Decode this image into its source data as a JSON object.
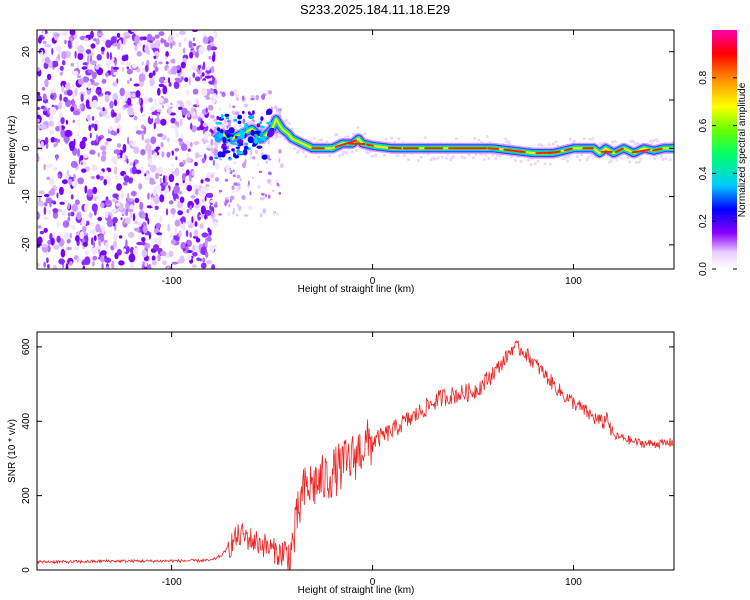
{
  "title": "S233.2025.184.11.18.E29",
  "chart_data": [
    {
      "type": "heatmap",
      "xlabel": "Height of straight line (km)",
      "ylabel": "Frequency (Hz)",
      "xlim": [
        -167,
        150
      ],
      "ylim": [
        -25,
        24.5
      ],
      "xticks": [
        -100,
        0,
        100
      ],
      "yticks": [
        -20,
        -10,
        0,
        10,
        20
      ],
      "colorbar": {
        "label": "Normalized spectral amplitude",
        "range": [
          0,
          1
        ],
        "ticks": [
          0.0,
          0.2,
          0.4,
          0.6,
          0.8
        ],
        "colormap": [
          "#ffffff",
          "#e9ccff",
          "#8a00ff",
          "#0000ff",
          "#00ccff",
          "#00ff66",
          "#66ff00",
          "#ffff00",
          "#ff8800",
          "#ff0000",
          "#ff00aa"
        ]
      },
      "ridge_profile": {
        "x": [
          -80,
          -75,
          -70,
          -65,
          -60,
          -55,
          -50,
          -48,
          -45,
          -42,
          -40,
          -35,
          -30,
          -25,
          -20,
          -15,
          -10,
          -7,
          -5,
          0,
          10,
          20,
          30,
          40,
          50,
          60,
          70,
          80,
          90,
          95,
          100,
          105,
          110,
          113,
          116,
          120,
          125,
          130,
          135,
          140,
          145,
          150
        ],
        "y": [
          1,
          3,
          2,
          3,
          4,
          2,
          4,
          6,
          4,
          3,
          2,
          1,
          0,
          0,
          0,
          1,
          1,
          2,
          1,
          0.5,
          0,
          0,
          0,
          0,
          0,
          0,
          -0.5,
          -1,
          -1,
          -0.5,
          0,
          0,
          0,
          -1,
          0,
          -1,
          0,
          -1,
          0,
          -0.5,
          0,
          0
        ]
      }
    },
    {
      "type": "line",
      "xlabel": "Height of straight line (km)",
      "ylabel": "SNR (10 * v/v)",
      "xlim": [
        -167,
        150
      ],
      "ylim": [
        0,
        640
      ],
      "xticks": [
        -100,
        0,
        100
      ],
      "yticks": [
        0,
        200,
        400,
        600
      ],
      "series": [
        {
          "color": "#ee2222",
          "x": [
            -167,
            -150,
            -130,
            -110,
            -90,
            -80,
            -75,
            -72,
            -68,
            -65,
            -60,
            -55,
            -50,
            -45,
            -42,
            -40,
            -37,
            -35,
            -33,
            -30,
            -25,
            -20,
            -15,
            -10,
            -5,
            0,
            5,
            10,
            15,
            20,
            25,
            30,
            35,
            40,
            45,
            50,
            55,
            60,
            65,
            70,
            75,
            80,
            85,
            90,
            95,
            100,
            105,
            110,
            115,
            117,
            118,
            120,
            125,
            130,
            135,
            140,
            145,
            150
          ],
          "y": [
            22,
            22,
            24,
            24,
            25,
            26,
            40,
            60,
            85,
            95,
            80,
            70,
            55,
            40,
            30,
            60,
            150,
            200,
            220,
            230,
            240,
            260,
            280,
            300,
            330,
            345,
            360,
            375,
            395,
            410,
            430,
            450,
            465,
            470,
            475,
            480,
            500,
            530,
            560,
            600,
            590,
            560,
            530,
            500,
            470,
            450,
            430,
            410,
            395,
            420,
            380,
            360,
            355,
            345,
            340,
            340,
            340,
            345
          ]
        }
      ]
    }
  ]
}
